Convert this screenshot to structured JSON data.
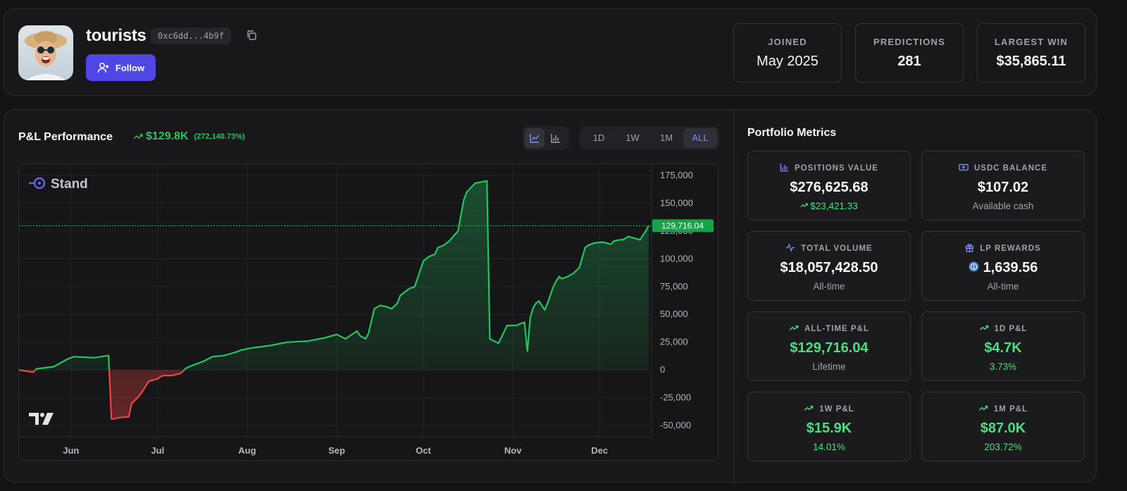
{
  "profile": {
    "username": "tourists",
    "address": "0xc6dd...4b9f",
    "follow_label": "Follow",
    "stats": [
      {
        "label": "JOINED",
        "value": "May 2025"
      },
      {
        "label": "PREDICTIONS",
        "value": "281"
      },
      {
        "label": "LARGEST WIN",
        "value": "$35,865.11"
      }
    ]
  },
  "pnl": {
    "title": "P&L Performance",
    "change_value": "$129.8K",
    "change_pct": "(272,140.73%)",
    "ranges": [
      "1D",
      "1W",
      "1M",
      "ALL"
    ],
    "active_range": "ALL"
  },
  "chart_data": {
    "type": "line",
    "watermark": "Stand",
    "ylim": [
      -60000,
      185000
    ],
    "y_ticks": [
      175000,
      150000,
      125000,
      100000,
      75000,
      50000,
      25000,
      0,
      -25000,
      -50000
    ],
    "y_tick_labels": [
      "175,000",
      "150,000",
      "125,000",
      "100,000",
      "75,000",
      "50,000",
      "25,000",
      "0",
      "-25,000",
      "-50,000"
    ],
    "x_tick_labels": [
      "Jun",
      "Jul",
      "Aug",
      "Sep",
      "Oct",
      "Nov",
      "Dec"
    ],
    "x_tick_days": [
      31,
      61,
      92,
      123,
      153,
      184,
      214
    ],
    "x_range_days": [
      13,
      232
    ],
    "last_value_label": "129,716.04",
    "last_value": 129716,
    "positive_color": "#22c55e",
    "negative_color": "#ef4444",
    "x_days": [
      13,
      18,
      19,
      25,
      30,
      32,
      39,
      44,
      45,
      46,
      47,
      51,
      52,
      54,
      55,
      57,
      58,
      61,
      62,
      63,
      66,
      69,
      71,
      74,
      77,
      80,
      84,
      88,
      90,
      94,
      97,
      100,
      106,
      113,
      119,
      123,
      126,
      130,
      131,
      133,
      134,
      136,
      138,
      140,
      142,
      144,
      145,
      148,
      150,
      153,
      155,
      157,
      158,
      160,
      162,
      165,
      167,
      168,
      171,
      175,
      176,
      179,
      182,
      185,
      188,
      189,
      190,
      191,
      192,
      193,
      195,
      196,
      198,
      199,
      200,
      201,
      203,
      205,
      207,
      209,
      210,
      212,
      215,
      218,
      219,
      221,
      222,
      224,
      228,
      230,
      231
    ],
    "y_values": [
      0,
      -2000,
      1000,
      3000,
      10000,
      12000,
      11000,
      13000,
      -44000,
      -44000,
      -43000,
      -42000,
      -30000,
      -25000,
      -22000,
      -14000,
      -10000,
      -8000,
      -6000,
      -5000,
      -5000,
      -3000,
      2000,
      5000,
      8000,
      12000,
      13000,
      16000,
      18000,
      20000,
      21000,
      22000,
      25000,
      26000,
      29000,
      32000,
      28000,
      35000,
      31000,
      28000,
      33000,
      55000,
      58000,
      57000,
      55000,
      60000,
      67000,
      73000,
      75000,
      98000,
      102000,
      104000,
      110000,
      112000,
      116000,
      125000,
      153000,
      160000,
      168000,
      170000,
      28000,
      24000,
      40000,
      40000,
      43000,
      17000,
      47000,
      56000,
      60000,
      62000,
      54000,
      60000,
      75000,
      80000,
      84000,
      82000,
      84000,
      87000,
      92000,
      110000,
      112000,
      114000,
      115000,
      113000,
      116000,
      117000,
      117000,
      120000,
      117000,
      125000,
      129716
    ]
  },
  "metrics": {
    "title": "Portfolio Metrics",
    "cards": [
      {
        "label": "POSITIONS VALUE",
        "icon": "bar-chart-icon",
        "value": "$276,625.68",
        "sub": "$23,421.33",
        "sub_trend": true,
        "green_value": false,
        "green_sub": true
      },
      {
        "label": "USDC BALANCE",
        "icon": "wallet-icon",
        "value": "$107.02",
        "sub": "Available cash",
        "sub_trend": false,
        "green_value": false,
        "green_sub": false
      },
      {
        "label": "TOTAL VOLUME",
        "icon": "activity-icon",
        "value": "$18,057,428.50",
        "sub": "All-time",
        "sub_trend": false,
        "green_value": false,
        "green_sub": false
      },
      {
        "label": "LP REWARDS",
        "icon": "gift-icon",
        "value": "1,639.56",
        "sub": "All-time",
        "sub_trend": false,
        "green_value": false,
        "green_sub": false
      },
      {
        "label": "ALL-TIME P&L",
        "icon": "trend-up-icon",
        "value": "$129,716.04",
        "sub": "Lifetime",
        "sub_trend": false,
        "green_value": true,
        "green_sub": false
      },
      {
        "label": "1D P&L",
        "icon": "trend-up-icon",
        "value": "$4.7K",
        "sub": "3.73%",
        "sub_trend": false,
        "green_value": true,
        "green_sub": true
      },
      {
        "label": "1W P&L",
        "icon": "trend-up-icon",
        "value": "$15.9K",
        "sub": "14.01%",
        "sub_trend": false,
        "green_value": true,
        "green_sub": true
      },
      {
        "label": "1M P&L",
        "icon": "trend-up-icon",
        "value": "$87.0K",
        "sub": "203.72%",
        "sub_trend": false,
        "green_value": true,
        "green_sub": true
      }
    ]
  }
}
